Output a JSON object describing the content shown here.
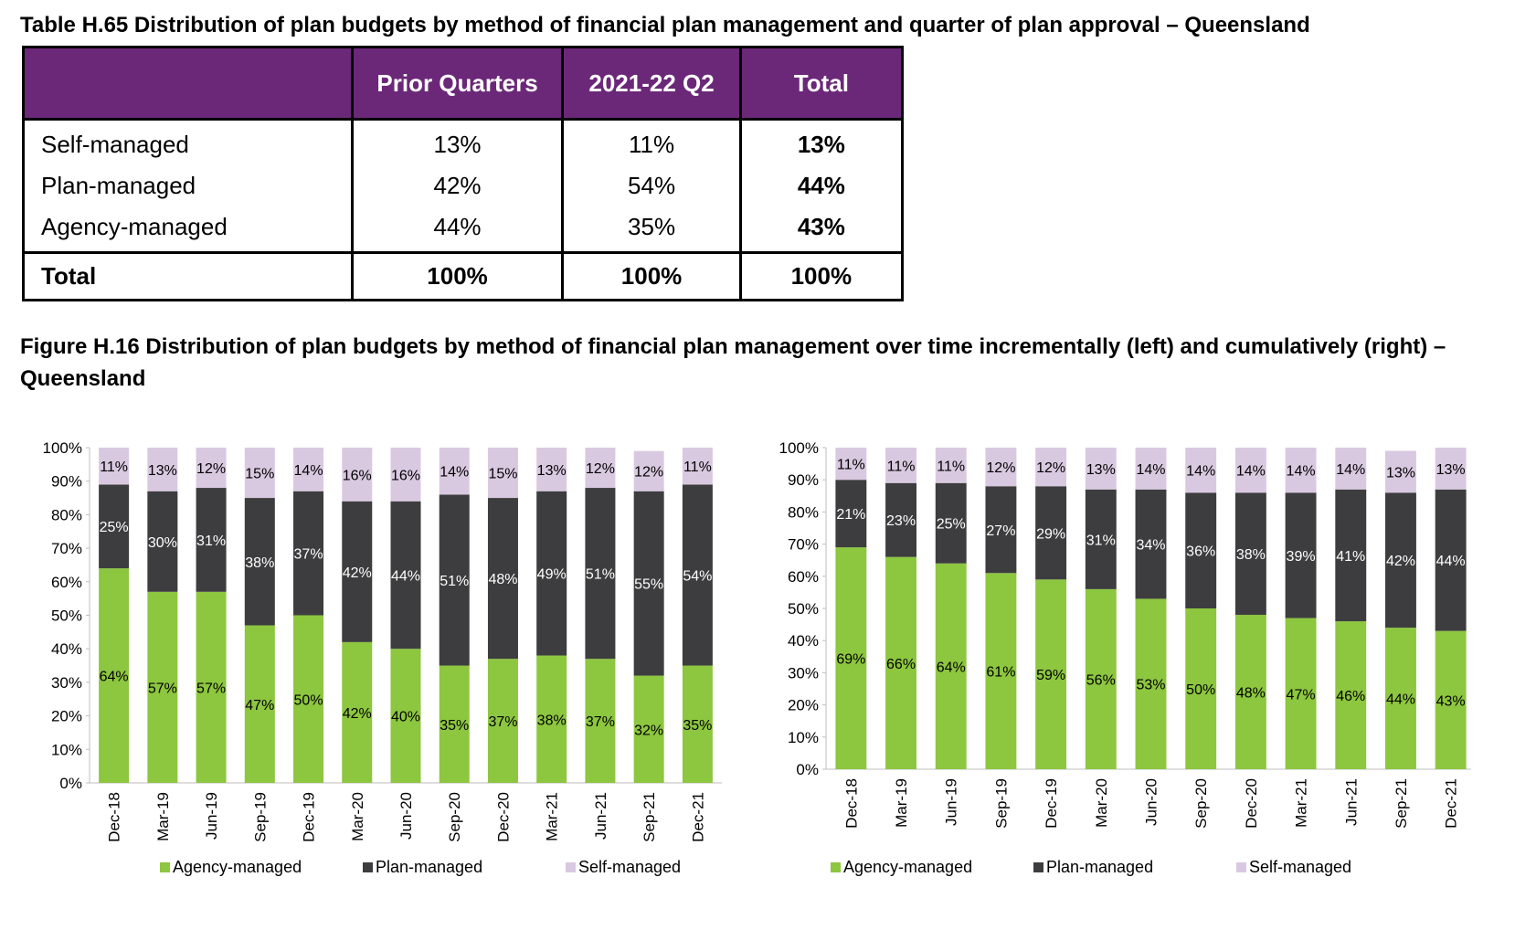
{
  "table": {
    "title": "Table H.65 Distribution of plan budgets by method of financial plan management and quarter of plan approval – Queensland",
    "headers": [
      "",
      "Prior Quarters",
      "2021-22 Q2",
      "Total"
    ],
    "rows": [
      {
        "label": "Self-managed",
        "prior": "13%",
        "q2": "11%",
        "total": "13%"
      },
      {
        "label": "Plan-managed",
        "prior": "42%",
        "q2": "54%",
        "total": "44%"
      },
      {
        "label": "Agency-managed",
        "prior": "44%",
        "q2": "35%",
        "total": "43%"
      }
    ],
    "total_row": {
      "label": "Total",
      "prior": "100%",
      "q2": "100%",
      "total": "100%"
    }
  },
  "figure": {
    "title": "Figure H.16 Distribution of plan budgets by method of financial plan management over time incrementally (left) and cumulatively (right) – Queensland"
  },
  "colors": {
    "agency": "#8dc63f",
    "plan": "#3d3d3f",
    "self": "#d9c9e0",
    "header": "#6b2878"
  },
  "chart_data": [
    {
      "type": "bar",
      "stacked": true,
      "categories": [
        "Dec-18",
        "Mar-19",
        "Jun-19",
        "Sep-19",
        "Dec-19",
        "Mar-20",
        "Jun-20",
        "Sep-20",
        "Dec-20",
        "Mar-21",
        "Jun-21",
        "Sep-21",
        "Dec-21"
      ],
      "series": [
        {
          "name": "Agency-managed",
          "values": [
            64,
            57,
            57,
            47,
            50,
            42,
            40,
            35,
            37,
            38,
            37,
            32,
            35
          ]
        },
        {
          "name": "Plan-managed",
          "values": [
            25,
            30,
            31,
            38,
            37,
            42,
            44,
            51,
            48,
            49,
            51,
            55,
            54
          ]
        },
        {
          "name": "Self-managed",
          "values": [
            11,
            13,
            12,
            15,
            14,
            16,
            16,
            14,
            15,
            13,
            12,
            12,
            11
          ]
        }
      ],
      "ylim": [
        0,
        100
      ],
      "yticks": [
        "0%",
        "10%",
        "20%",
        "30%",
        "40%",
        "50%",
        "60%",
        "70%",
        "80%",
        "90%",
        "100%"
      ],
      "legend": "bottom"
    },
    {
      "type": "bar",
      "stacked": true,
      "categories": [
        "Dec-18",
        "Mar-19",
        "Jun-19",
        "Sep-19",
        "Dec-19",
        "Mar-20",
        "Jun-20",
        "Sep-20",
        "Dec-20",
        "Mar-21",
        "Jun-21",
        "Sep-21",
        "Dec-21"
      ],
      "series": [
        {
          "name": "Agency-managed",
          "values": [
            69,
            66,
            64,
            61,
            59,
            56,
            53,
            50,
            48,
            47,
            46,
            44,
            43
          ]
        },
        {
          "name": "Plan-managed",
          "values": [
            21,
            23,
            25,
            27,
            29,
            31,
            34,
            36,
            38,
            39,
            41,
            42,
            44
          ]
        },
        {
          "name": "Self-managed",
          "values": [
            11,
            11,
            11,
            12,
            12,
            13,
            14,
            14,
            14,
            14,
            14,
            13,
            13
          ]
        }
      ],
      "ylim": [
        0,
        100
      ],
      "yticks": [
        "0%",
        "10%",
        "20%",
        "30%",
        "40%",
        "50%",
        "60%",
        "70%",
        "80%",
        "90%",
        "100%"
      ],
      "legend": "bottom"
    }
  ]
}
